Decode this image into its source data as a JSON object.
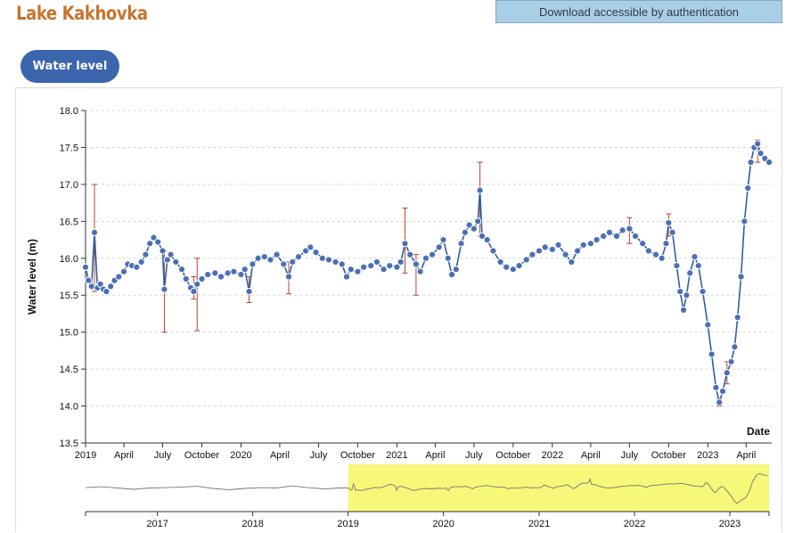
{
  "page": {
    "title": "Lake Kakhovka",
    "download_label": "Download accessible by authentication",
    "tab_label": "Water level (m)"
  },
  "colors": {
    "title": "#c8742e",
    "tab_bg": "#3b65ad",
    "line": "#2f5f9e",
    "point_fill": "#4a6fb5",
    "error_bar": "#b5452f",
    "brush_highlight": "#f7f77a"
  },
  "chart_data": {
    "type": "line",
    "ylabel": "Water level (m)",
    "xlabel": "Date",
    "ylim": [
      13.5,
      18.0
    ],
    "xlim": [
      "2019-01-01",
      "2023-05-31"
    ],
    "y_ticks": [
      "13.5",
      "14.0",
      "14.5",
      "15.0",
      "15.5",
      "16.0",
      "16.5",
      "17.0",
      "17.5",
      "18.0"
    ],
    "x_ticks": [
      {
        "date": "2019-01-01",
        "label": "2019"
      },
      {
        "date": "2019-04-01",
        "label": "April"
      },
      {
        "date": "2019-07-01",
        "label": "July"
      },
      {
        "date": "2019-10-01",
        "label": "October"
      },
      {
        "date": "2020-01-01",
        "label": "2020"
      },
      {
        "date": "2020-04-01",
        "label": "April"
      },
      {
        "date": "2020-07-01",
        "label": "July"
      },
      {
        "date": "2020-10-01",
        "label": "October"
      },
      {
        "date": "2021-01-01",
        "label": "2021"
      },
      {
        "date": "2021-04-01",
        "label": "April"
      },
      {
        "date": "2021-07-01",
        "label": "July"
      },
      {
        "date": "2021-10-01",
        "label": "October"
      },
      {
        "date": "2022-01-01",
        "label": "2022"
      },
      {
        "date": "2022-04-01",
        "label": "April"
      },
      {
        "date": "2022-07-01",
        "label": "July"
      },
      {
        "date": "2022-10-01",
        "label": "October"
      },
      {
        "date": "2023-01-01",
        "label": "2023"
      },
      {
        "date": "2023-04-01",
        "label": "April"
      }
    ],
    "grid": "horizontal dashed",
    "series": [
      {
        "points": [
          [
            "2019-01-01",
            15.88
          ],
          [
            "2019-01-08",
            15.7
          ],
          [
            "2019-01-15",
            15.62
          ],
          [
            "2019-01-22",
            16.35
          ],
          [
            "2019-01-29",
            15.6
          ],
          [
            "2019-02-05",
            15.65
          ],
          [
            "2019-02-12",
            15.58
          ],
          [
            "2019-02-19",
            15.55
          ],
          [
            "2019-03-01",
            15.62
          ],
          [
            "2019-03-10",
            15.7
          ],
          [
            "2019-03-20",
            15.75
          ],
          [
            "2019-04-01",
            15.82
          ],
          [
            "2019-04-10",
            15.92
          ],
          [
            "2019-04-20",
            15.9
          ],
          [
            "2019-05-01",
            15.88
          ],
          [
            "2019-05-12",
            15.95
          ],
          [
            "2019-05-22",
            16.05
          ],
          [
            "2019-06-01",
            16.2
          ],
          [
            "2019-06-10",
            16.28
          ],
          [
            "2019-06-20",
            16.22
          ],
          [
            "2019-07-01",
            16.1
          ],
          [
            "2019-07-05",
            15.58
          ],
          [
            "2019-07-12",
            15.98
          ],
          [
            "2019-07-20",
            16.05
          ],
          [
            "2019-08-01",
            15.95
          ],
          [
            "2019-08-15",
            15.85
          ],
          [
            "2019-08-25",
            15.72
          ],
          [
            "2019-09-05",
            15.6
          ],
          [
            "2019-09-12",
            15.55
          ],
          [
            "2019-09-20",
            15.65
          ],
          [
            "2019-10-01",
            15.72
          ],
          [
            "2019-10-15",
            15.78
          ],
          [
            "2019-11-01",
            15.8
          ],
          [
            "2019-11-15",
            15.75
          ],
          [
            "2019-12-01",
            15.8
          ],
          [
            "2019-12-15",
            15.82
          ],
          [
            "2020-01-01",
            15.78
          ],
          [
            "2020-01-10",
            15.85
          ],
          [
            "2020-01-20",
            15.55
          ],
          [
            "2020-01-28",
            15.92
          ],
          [
            "2020-02-10",
            16.0
          ],
          [
            "2020-02-25",
            16.02
          ],
          [
            "2020-03-10",
            15.98
          ],
          [
            "2020-03-25",
            16.05
          ],
          [
            "2020-04-10",
            15.92
          ],
          [
            "2020-04-22",
            15.75
          ],
          [
            "2020-05-01",
            15.95
          ],
          [
            "2020-05-15",
            16.02
          ],
          [
            "2020-06-01",
            16.1
          ],
          [
            "2020-06-12",
            16.15
          ],
          [
            "2020-06-25",
            16.08
          ],
          [
            "2020-07-10",
            16.0
          ],
          [
            "2020-07-25",
            15.98
          ],
          [
            "2020-08-10",
            15.95
          ],
          [
            "2020-08-25",
            15.92
          ],
          [
            "2020-09-05",
            15.75
          ],
          [
            "2020-09-15",
            15.85
          ],
          [
            "2020-10-01",
            15.82
          ],
          [
            "2020-10-15",
            15.88
          ],
          [
            "2020-11-01",
            15.9
          ],
          [
            "2020-11-15",
            15.95
          ],
          [
            "2020-12-01",
            15.85
          ],
          [
            "2020-12-15",
            15.9
          ],
          [
            "2021-01-01",
            15.88
          ],
          [
            "2021-01-10",
            15.95
          ],
          [
            "2021-01-20",
            16.2
          ],
          [
            "2021-02-01",
            16.05
          ],
          [
            "2021-02-15",
            15.92
          ],
          [
            "2021-02-25",
            15.82
          ],
          [
            "2021-03-10",
            16.0
          ],
          [
            "2021-03-25",
            16.05
          ],
          [
            "2021-04-10",
            16.15
          ],
          [
            "2021-04-20",
            16.25
          ],
          [
            "2021-05-01",
            16.0
          ],
          [
            "2021-05-10",
            15.78
          ],
          [
            "2021-05-20",
            15.85
          ],
          [
            "2021-06-01",
            16.2
          ],
          [
            "2021-06-10",
            16.35
          ],
          [
            "2021-06-20",
            16.45
          ],
          [
            "2021-07-01",
            16.4
          ],
          [
            "2021-07-10",
            16.5
          ],
          [
            "2021-07-15",
            16.92
          ],
          [
            "2021-07-20",
            16.3
          ],
          [
            "2021-08-01",
            16.25
          ],
          [
            "2021-08-15",
            16.1
          ],
          [
            "2021-09-01",
            15.95
          ],
          [
            "2021-09-15",
            15.88
          ],
          [
            "2021-10-01",
            15.85
          ],
          [
            "2021-10-15",
            15.9
          ],
          [
            "2021-11-01",
            15.98
          ],
          [
            "2021-11-15",
            16.05
          ],
          [
            "2021-12-01",
            16.1
          ],
          [
            "2021-12-15",
            16.15
          ],
          [
            "2022-01-01",
            16.12
          ],
          [
            "2022-01-15",
            16.18
          ],
          [
            "2022-02-01",
            16.05
          ],
          [
            "2022-02-15",
            15.95
          ],
          [
            "2022-03-01",
            16.1
          ],
          [
            "2022-03-15",
            16.18
          ],
          [
            "2022-04-01",
            16.2
          ],
          [
            "2022-04-15",
            16.25
          ],
          [
            "2022-05-01",
            16.3
          ],
          [
            "2022-05-15",
            16.35
          ],
          [
            "2022-06-01",
            16.3
          ],
          [
            "2022-06-15",
            16.38
          ],
          [
            "2022-07-01",
            16.4
          ],
          [
            "2022-07-15",
            16.3
          ],
          [
            "2022-08-01",
            16.2
          ],
          [
            "2022-08-15",
            16.1
          ],
          [
            "2022-09-01",
            16.05
          ],
          [
            "2022-09-15",
            16.0
          ],
          [
            "2022-09-25",
            16.2
          ],
          [
            "2022-10-01",
            16.48
          ],
          [
            "2022-10-10",
            16.35
          ],
          [
            "2022-10-20",
            15.9
          ],
          [
            "2022-10-28",
            15.55
          ],
          [
            "2022-11-05",
            15.3
          ],
          [
            "2022-11-12",
            15.5
          ],
          [
            "2022-11-20",
            15.8
          ],
          [
            "2022-12-01",
            16.02
          ],
          [
            "2022-12-10",
            15.9
          ],
          [
            "2022-12-20",
            15.55
          ],
          [
            "2023-01-01",
            15.1
          ],
          [
            "2023-01-10",
            14.7
          ],
          [
            "2023-01-20",
            14.25
          ],
          [
            "2023-01-28",
            14.05
          ],
          [
            "2023-02-05",
            14.2
          ],
          [
            "2023-02-15",
            14.45
          ],
          [
            "2023-02-25",
            14.6
          ],
          [
            "2023-03-05",
            14.8
          ],
          [
            "2023-03-12",
            15.2
          ],
          [
            "2023-03-20",
            15.75
          ],
          [
            "2023-03-28",
            16.5
          ],
          [
            "2023-04-05",
            16.95
          ],
          [
            "2023-04-12",
            17.3
          ],
          [
            "2023-04-20",
            17.5
          ],
          [
            "2023-04-28",
            17.55
          ],
          [
            "2023-05-05",
            17.42
          ],
          [
            "2023-05-15",
            17.35
          ],
          [
            "2023-05-25",
            17.3
          ]
        ]
      }
    ],
    "error_bars": [
      {
        "date": "2019-01-22",
        "low": 15.55,
        "high": 17.0
      },
      {
        "date": "2019-07-05",
        "low": 15.0,
        "high": 16.1
      },
      {
        "date": "2019-09-20",
        "low": 15.02,
        "high": 16.0
      },
      {
        "date": "2019-09-12",
        "low": 15.45,
        "high": 15.75
      },
      {
        "date": "2020-01-20",
        "low": 15.4,
        "high": 15.75
      },
      {
        "date": "2020-04-22",
        "low": 15.52,
        "high": 15.95
      },
      {
        "date": "2021-01-20",
        "low": 15.8,
        "high": 16.68
      },
      {
        "date": "2021-02-15",
        "low": 15.5,
        "high": 16.05
      },
      {
        "date": "2021-07-15",
        "low": 16.3,
        "high": 17.3
      },
      {
        "date": "2022-07-01",
        "low": 16.2,
        "high": 16.55
      },
      {
        "date": "2022-10-01",
        "low": 16.3,
        "high": 16.6
      },
      {
        "date": "2023-01-28",
        "low": 14.0,
        "high": 14.1
      },
      {
        "date": "2023-02-15",
        "low": 14.3,
        "high": 14.6
      },
      {
        "date": "2023-04-28",
        "low": 17.3,
        "high": 17.6
      }
    ],
    "overview": {
      "xlim": [
        "2016-04-01",
        "2023-05-31"
      ],
      "x_ticks": [
        {
          "date": "2017-01-01",
          "label": "2017"
        },
        {
          "date": "2018-01-01",
          "label": "2018"
        },
        {
          "date": "2019-01-01",
          "label": "2019"
        },
        {
          "date": "2020-01-01",
          "label": "2020"
        },
        {
          "date": "2021-01-01",
          "label": "2021"
        },
        {
          "date": "2022-01-01",
          "label": "2022"
        },
        {
          "date": "2023-01-01",
          "label": "2023"
        }
      ],
      "selected_range": [
        "2019-01-01",
        "2023-05-31"
      ],
      "early_points": [
        [
          "2016-04-01",
          15.9
        ],
        [
          "2016-06-01",
          16.0
        ],
        [
          "2016-08-01",
          15.85
        ],
        [
          "2016-10-01",
          15.7
        ],
        [
          "2016-12-01",
          15.85
        ],
        [
          "2017-02-01",
          15.9
        ],
        [
          "2017-04-01",
          15.95
        ],
        [
          "2017-06-01",
          16.05
        ],
        [
          "2017-08-01",
          15.8
        ],
        [
          "2017-10-01",
          15.65
        ],
        [
          "2017-12-01",
          15.8
        ],
        [
          "2018-02-01",
          15.9
        ],
        [
          "2018-04-01",
          15.85
        ],
        [
          "2018-06-01",
          16.1
        ],
        [
          "2018-08-01",
          15.9
        ],
        [
          "2018-10-01",
          15.75
        ],
        [
          "2018-12-01",
          15.85
        ]
      ]
    }
  }
}
